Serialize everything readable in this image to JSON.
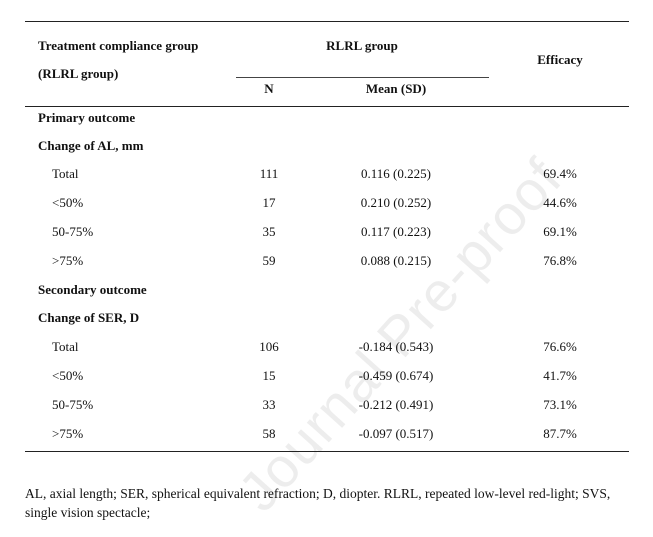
{
  "table": {
    "header": {
      "group_col_line1": "Treatment compliance group",
      "group_col_line2": "(RLRL group)",
      "rlrl_group": "RLRL group",
      "n": "N",
      "mean_sd": "Mean (SD)",
      "efficacy": "Efficacy"
    },
    "sections": [
      {
        "title": "Primary outcome",
        "subtitle": "Change of AL, mm",
        "rows": [
          {
            "label": "Total",
            "n": "111",
            "mean": "0.116 (0.225)",
            "efficacy": "69.4%"
          },
          {
            "label": "<50%",
            "n": "17",
            "mean": "0.210 (0.252)",
            "efficacy": "44.6%"
          },
          {
            "label": "50-75%",
            "n": "35",
            "mean": "0.117 (0.223)",
            "efficacy": "69.1%"
          },
          {
            "label": ">75%",
            "n": "59",
            "mean": "0.088 (0.215)",
            "efficacy": "76.8%"
          }
        ]
      },
      {
        "title": "Secondary outcome",
        "subtitle": "Change of SER, D",
        "rows": [
          {
            "label": "Total",
            "n": "106",
            "mean": "-0.184 (0.543)",
            "efficacy": "76.6%"
          },
          {
            "label": "<50%",
            "n": "15",
            "mean": "-0.459 (0.674)",
            "efficacy": "41.7%"
          },
          {
            "label": "50-75%",
            "n": "33",
            "mean": "-0.212 (0.491)",
            "efficacy": "73.1%"
          },
          {
            "label": ">75%",
            "n": "58",
            "mean": "-0.097 (0.517)",
            "efficacy": "87.7%"
          }
        ]
      }
    ]
  },
  "footnote": "AL, axial length; SER, spherical equivalent refraction; D, diopter. RLRL, repeated low-level red-light; SVS, single vision spectacle;",
  "watermark": "Journal Pre-proof"
}
